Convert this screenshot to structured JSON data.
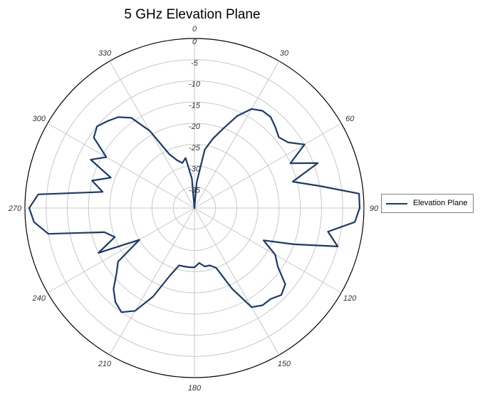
{
  "chart_data": {
    "type": "polar",
    "title": "5 GHz Elevation Plane",
    "angle_ticks": [
      "0",
      "30",
      "60",
      "90",
      "120",
      "150",
      "180",
      "210",
      "240",
      "270",
      "300",
      "330"
    ],
    "radial_ticks": [
      "0",
      "-5",
      "-10",
      "-15",
      "-20",
      "-25",
      "-30",
      "-35"
    ],
    "radial_range_dB": [
      -40,
      0
    ],
    "angle_direction": "clockwise",
    "zero_angle": "top",
    "grid": true,
    "legend_position": "right",
    "series": [
      {
        "name": "Elevation Plane",
        "color": "#1a3a6b",
        "angles_deg": [
          0,
          5,
          10,
          15,
          20,
          25,
          30,
          35,
          40,
          45,
          50,
          55,
          60,
          65,
          70,
          75,
          80,
          85,
          90,
          95,
          100,
          105,
          110,
          115,
          120,
          125,
          130,
          135,
          140,
          145,
          150,
          155,
          160,
          165,
          170,
          175,
          180,
          185,
          190,
          195,
          200,
          205,
          210,
          215,
          220,
          225,
          230,
          235,
          240,
          245,
          250,
          255,
          260,
          265,
          270,
          275,
          280,
          285,
          290,
          295,
          300,
          305,
          310,
          315,
          320,
          325,
          330,
          335,
          340,
          345,
          350,
          355
        ],
        "gain_dB": [
          -40,
          -34,
          -26,
          -23,
          -20,
          -16,
          -13,
          -12,
          -12,
          -13,
          -14,
          -13,
          -10,
          -15,
          -9,
          -16,
          -10,
          -1,
          -1,
          -2,
          -8,
          -5,
          -15,
          -22,
          -18,
          -16,
          -12,
          -11,
          -12,
          -12,
          -13,
          -19,
          -25,
          -26,
          -26,
          -27,
          -26,
          -26,
          -26,
          -26,
          -23,
          -17,
          -12,
          -10,
          -11,
          -13,
          -16,
          -18,
          -25,
          -15,
          -20,
          -18,
          -5,
          -2,
          -1,
          -3,
          -18,
          -15,
          -19,
          -13,
          -16,
          -11,
          -10,
          -11,
          -12,
          -14,
          -19,
          -26,
          -28,
          -29,
          -28,
          -33
        ]
      }
    ]
  }
}
